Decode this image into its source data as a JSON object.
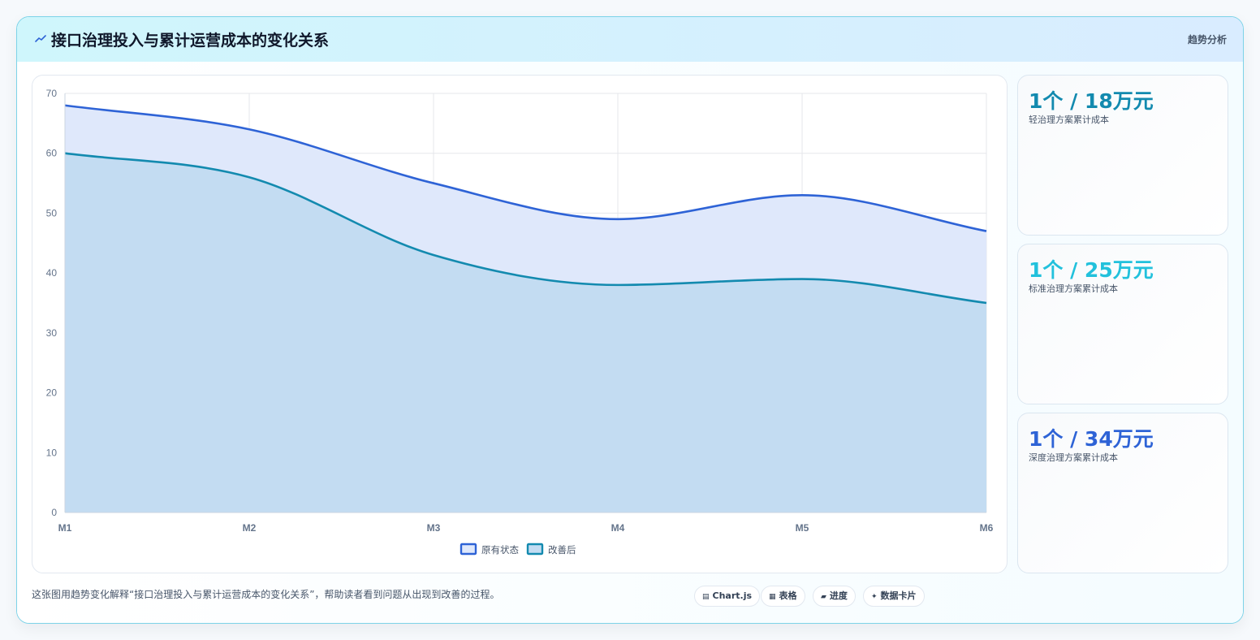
{
  "header": {
    "icon": "trend-icon",
    "title": "接口治理投入与累计运营成本的变化关系",
    "tag": "趋势分析"
  },
  "chart_data": {
    "type": "area",
    "categories": [
      "M1",
      "M2",
      "M3",
      "M4",
      "M5",
      "M6"
    ],
    "series": [
      {
        "name": "原有状态",
        "values": [
          68,
          64,
          55,
          49,
          53,
          47
        ],
        "color": "#2e63d6",
        "fill": "#dfe8fb"
      },
      {
        "name": "改善后",
        "values": [
          60,
          56,
          43,
          38,
          39,
          35
        ],
        "color": "#138aaf",
        "fill": "#c3dcf2"
      }
    ],
    "ylim": [
      0,
      70
    ],
    "yticks": [
      "0",
      "10",
      "20",
      "30",
      "40",
      "50",
      "60",
      "70"
    ],
    "grid": true,
    "legend": "bottom-center"
  },
  "stats": [
    {
      "value": "1个 / 18万元",
      "label": "轻治理方案累计成本",
      "color": "#138aaf"
    },
    {
      "value": "1个 / 25万元",
      "label": "标准治理方案累计成本",
      "color": "#22c1dc"
    },
    {
      "value": "1个 / 34万元",
      "label": "深度治理方案累计成本",
      "color": "#2e63d6"
    }
  ],
  "footer": {
    "text": "这张图用趋势变化解释“接口治理投入与累计运营成本的变化关系”，帮助读者看到问题从出现到改善的过程。",
    "pills": [
      {
        "icon": "chart-icon",
        "label": "Chart.js"
      },
      {
        "icon": "table-icon",
        "label": "表格"
      },
      {
        "icon": "progress-icon",
        "label": "进度"
      },
      {
        "icon": "sparkle-icon",
        "label": "数据卡片"
      }
    ]
  }
}
